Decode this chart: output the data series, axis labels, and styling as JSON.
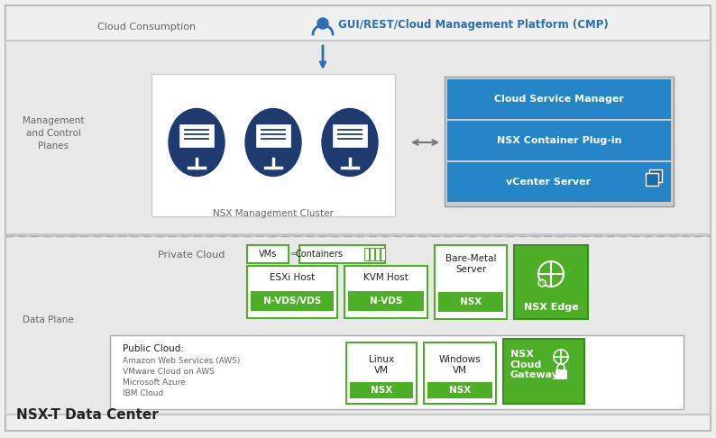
{
  "bg_color": "#f0f0f0",
  "white": "#ffffff",
  "blue_dark": "#1e3a6e",
  "blue_mid": "#2d6db5",
  "blue_btn": "#2585c7",
  "green": "#4caf27",
  "green_dark": "#3a8c1e",
  "green_fill": "#4caf27",
  "gray_bg": "#e8e8e8",
  "gray_border": "#aaaaaa",
  "gray_text": "#666666",
  "black": "#222222",
  "title_text": "NSX-T Data Center",
  "cloud_consumption": "Cloud Consumption",
  "gui_rest": "GUI/REST/Cloud Management Platform (CMP)",
  "mgmt_label": "Management\nand Control\nPlanes",
  "data_plane_label": "Data Plane",
  "nsx_mgmt_cluster": "NSX Management Cluster",
  "private_cloud": "Private Cloud",
  "public_cloud_label": "Public Cloud:",
  "public_cloud_items": [
    "Amazon Web Services (AWS)",
    "VMware Cloud on AWS",
    "Microsoft Azure",
    "IBM Cloud"
  ],
  "right_panel": [
    "Cloud Service Manager",
    "NSX Container Plug-in",
    "vCenter Server"
  ],
  "esxi_host": "ESXi Host",
  "kvm_host": "KVM Host",
  "bare_metal": "Bare-Metal\nServer",
  "nsx_edge": "NSX Edge",
  "linux_vm": "Linux\nVM",
  "windows_vm": "Windows\nVM",
  "nsx_cloud_gw": "NSX\nCloud\nGateway",
  "nvds_vds": "N-VDS/VDS",
  "nvds": "N-VDS",
  "nsx": "NSX",
  "vms_label": "VMs",
  "containers_label": "Containers"
}
